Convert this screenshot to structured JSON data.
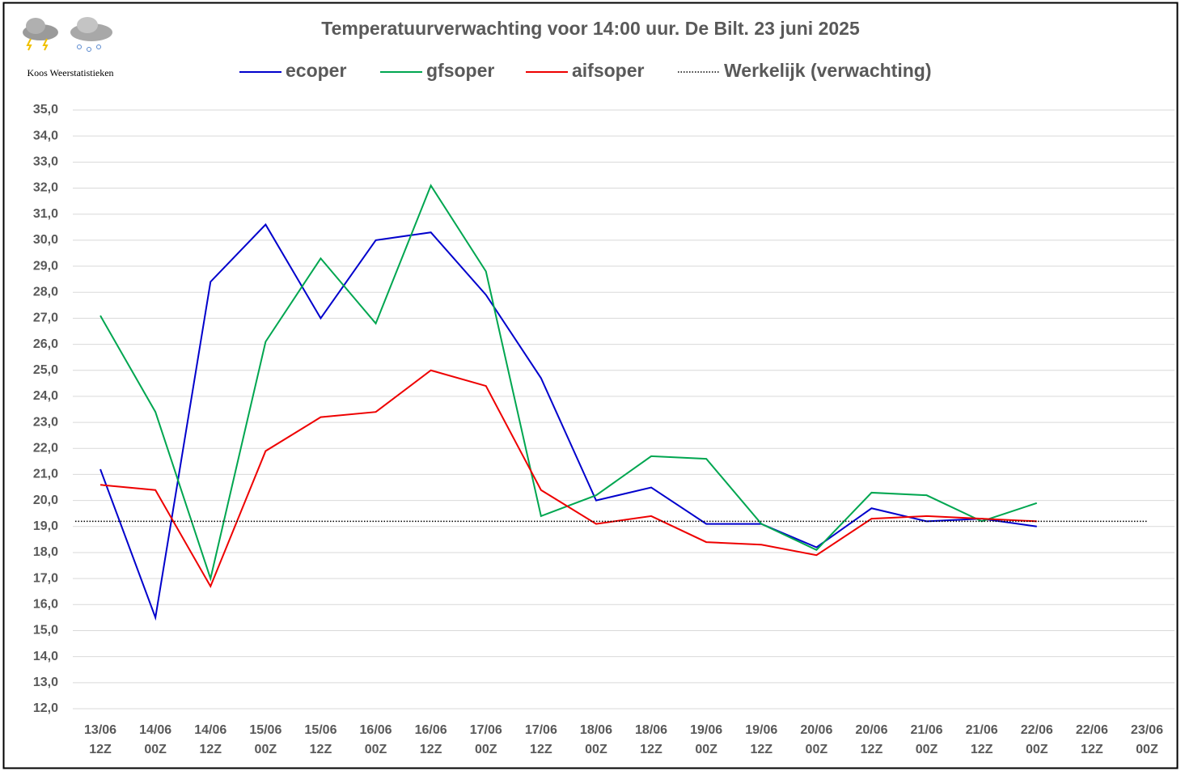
{
  "chart_data": {
    "type": "line",
    "title": "Temperatuurverwachting voor 14:00 uur. De Bilt. 23 juni 2025",
    "brand": "Koos Weerstatistieken",
    "categories": [
      [
        "13/06",
        "12Z"
      ],
      [
        "14/06",
        "00Z"
      ],
      [
        "14/06",
        "12Z"
      ],
      [
        "15/06",
        "00Z"
      ],
      [
        "15/06",
        "12Z"
      ],
      [
        "16/06",
        "00Z"
      ],
      [
        "16/06",
        "12Z"
      ],
      [
        "17/06",
        "00Z"
      ],
      [
        "17/06",
        "12Z"
      ],
      [
        "18/06",
        "00Z"
      ],
      [
        "18/06",
        "12Z"
      ],
      [
        "19/06",
        "00Z"
      ],
      [
        "19/06",
        "12Z"
      ],
      [
        "20/06",
        "00Z"
      ],
      [
        "20/06",
        "12Z"
      ],
      [
        "21/06",
        "00Z"
      ],
      [
        "21/06",
        "12Z"
      ],
      [
        "22/06",
        "00Z"
      ],
      [
        "22/06",
        "12Z"
      ],
      [
        "23/06",
        "00Z"
      ]
    ],
    "series": [
      {
        "name": "ecoper",
        "color": "#0000cc",
        "values": [
          21.2,
          15.5,
          28.4,
          30.6,
          27.0,
          30.0,
          30.3,
          27.9,
          24.7,
          20.0,
          20.5,
          19.1,
          19.1,
          18.2,
          19.7,
          19.2,
          19.3,
          19.0,
          null,
          null
        ]
      },
      {
        "name": "gfsoper",
        "color": "#00a650",
        "values": [
          27.1,
          23.4,
          17.0,
          26.1,
          29.3,
          26.8,
          32.1,
          28.8,
          19.4,
          20.2,
          21.7,
          21.6,
          19.1,
          18.1,
          20.3,
          20.2,
          19.2,
          19.9,
          null,
          null
        ]
      },
      {
        "name": "aifsoper",
        "color": "#ee0000",
        "values": [
          20.6,
          20.4,
          16.7,
          21.9,
          23.2,
          23.4,
          25.0,
          24.4,
          20.4,
          19.1,
          19.4,
          18.4,
          18.3,
          17.9,
          19.3,
          19.4,
          19.3,
          19.2,
          null,
          null
        ]
      },
      {
        "name": "Werkelijk (verwachting)",
        "color": "#000000",
        "dotted": true,
        "values": [
          19.2,
          19.2,
          19.2,
          19.2,
          19.2,
          19.2,
          19.2,
          19.2,
          19.2,
          19.2,
          19.2,
          19.2,
          19.2,
          19.2,
          19.2,
          19.2,
          19.2,
          19.2,
          19.2,
          19.2
        ]
      }
    ],
    "ylim": [
      12,
      35
    ],
    "yticks": [
      {
        "value": 12,
        "label": "12,0"
      },
      {
        "value": 13,
        "label": "13,0"
      },
      {
        "value": 14,
        "label": "14,0"
      },
      {
        "value": 15,
        "label": "15,0"
      },
      {
        "value": 16,
        "label": "16,0"
      },
      {
        "value": 17,
        "label": "17,0"
      },
      {
        "value": 18,
        "label": "18,0"
      },
      {
        "value": 19,
        "label": "19,0"
      },
      {
        "value": 20,
        "label": "20,0"
      },
      {
        "value": 21,
        "label": "21,0"
      },
      {
        "value": 22,
        "label": "22,0"
      },
      {
        "value": 23,
        "label": "23,0"
      },
      {
        "value": 24,
        "label": "24,0"
      },
      {
        "value": 25,
        "label": "25,0"
      },
      {
        "value": 26,
        "label": "26,0"
      },
      {
        "value": 27,
        "label": "27,0"
      },
      {
        "value": 28,
        "label": "28,0"
      },
      {
        "value": 29,
        "label": "29,0"
      },
      {
        "value": 30,
        "label": "30,0"
      },
      {
        "value": 31,
        "label": "31,0"
      },
      {
        "value": 32,
        "label": "32,0"
      },
      {
        "value": 33,
        "label": "33,0"
      },
      {
        "value": 34,
        "label": "34,0"
      },
      {
        "value": 35,
        "label": "35,0"
      }
    ],
    "grid": true
  }
}
